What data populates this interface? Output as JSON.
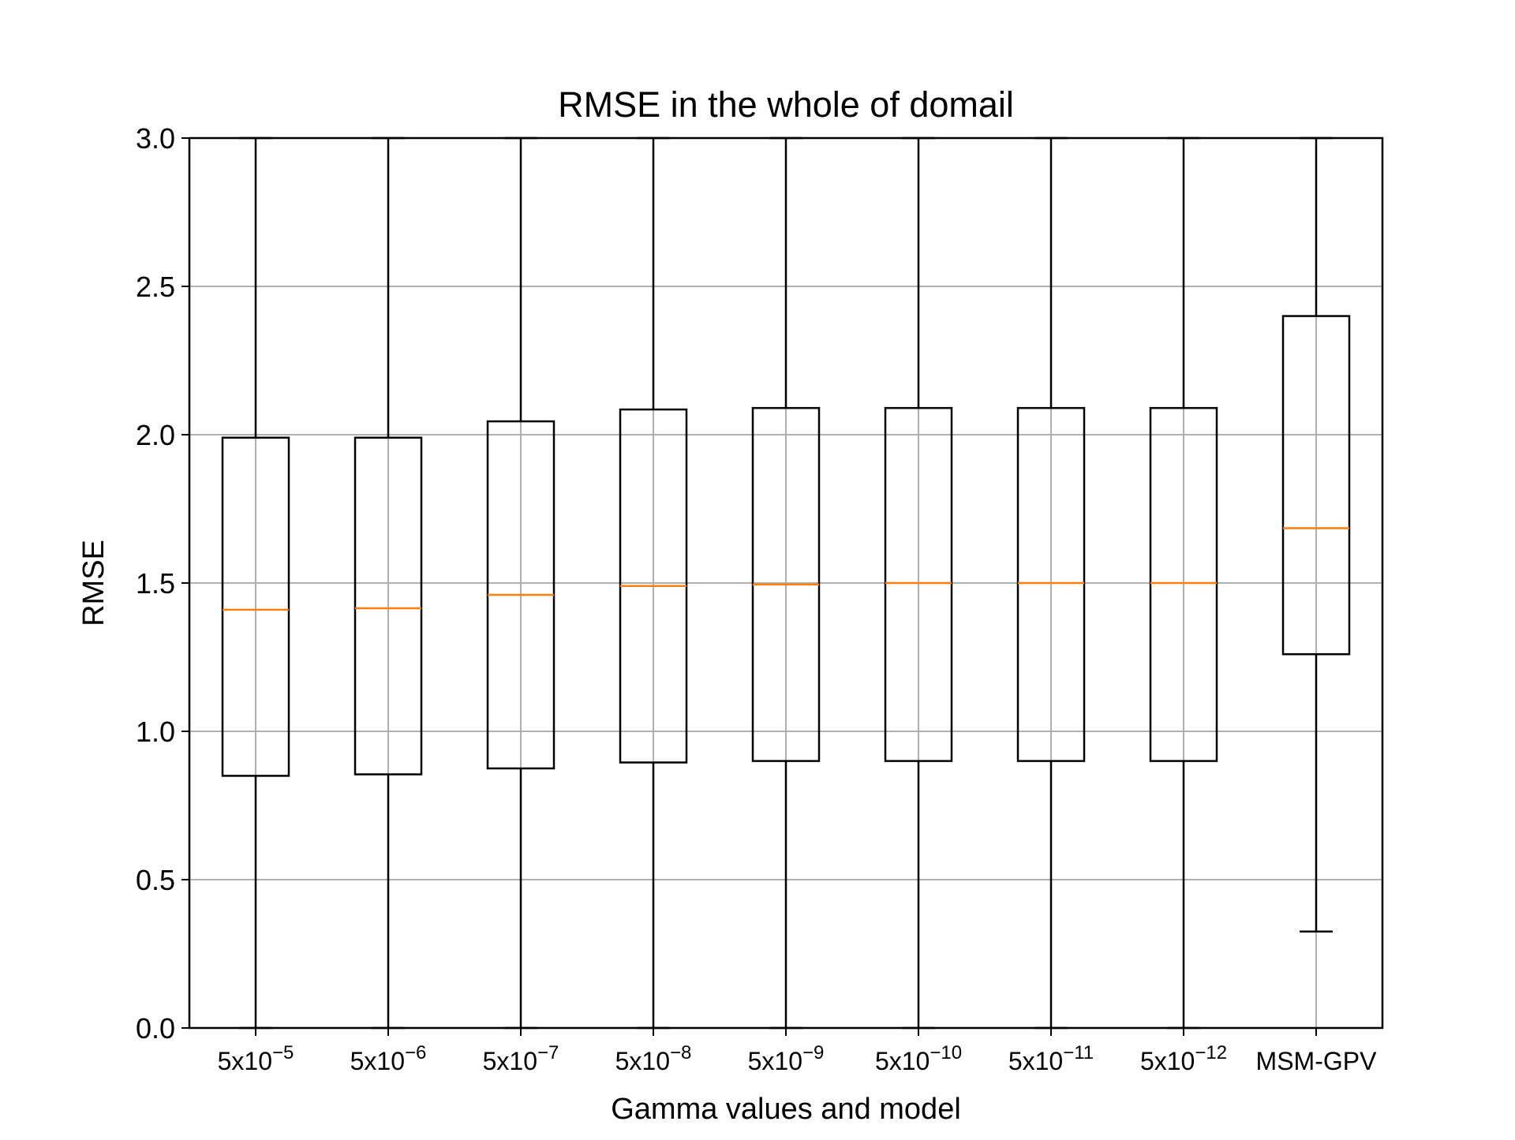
{
  "chart_data": {
    "type": "box",
    "title": "RMSE in the whole of domail",
    "xlabel": "Gamma values and model",
    "ylabel": "RMSE",
    "ylim": [
      0,
      3.0
    ],
    "yticks": [
      0.0,
      0.5,
      1.0,
      1.5,
      2.0,
      2.5,
      3.0
    ],
    "ytick_labels": [
      "0.0",
      "0.5",
      "1.0",
      "1.5",
      "2.0",
      "2.5",
      "3.0"
    ],
    "grid": true,
    "categories": [
      {
        "base": "5x10",
        "exp": "−5"
      },
      {
        "base": "5x10",
        "exp": "−6"
      },
      {
        "base": "5x10",
        "exp": "−7"
      },
      {
        "base": "5x10",
        "exp": "−8"
      },
      {
        "base": "5x10",
        "exp": "−9"
      },
      {
        "base": "5x10",
        "exp": "−10"
      },
      {
        "base": "5x10",
        "exp": "−11"
      },
      {
        "base": "5x10",
        "exp": "−12"
      },
      {
        "base": "MSM-GPV",
        "exp": ""
      }
    ],
    "boxes": [
      {
        "whisker_low": 0.0,
        "q1": 0.85,
        "median": 1.41,
        "q3": 1.99,
        "whisker_high": 3.0
      },
      {
        "whisker_low": 0.0,
        "q1": 0.855,
        "median": 1.415,
        "q3": 1.99,
        "whisker_high": 3.0
      },
      {
        "whisker_low": 0.0,
        "q1": 0.875,
        "median": 1.46,
        "q3": 2.045,
        "whisker_high": 3.0
      },
      {
        "whisker_low": 0.0,
        "q1": 0.895,
        "median": 1.49,
        "q3": 2.085,
        "whisker_high": 3.0
      },
      {
        "whisker_low": 0.0,
        "q1": 0.9,
        "median": 1.495,
        "q3": 2.09,
        "whisker_high": 3.0
      },
      {
        "whisker_low": 0.0,
        "q1": 0.9,
        "median": 1.5,
        "q3": 2.09,
        "whisker_high": 3.0
      },
      {
        "whisker_low": 0.0,
        "q1": 0.9,
        "median": 1.5,
        "q3": 2.09,
        "whisker_high": 3.0
      },
      {
        "whisker_low": 0.0,
        "q1": 0.9,
        "median": 1.5,
        "q3": 2.09,
        "whisker_high": 3.0
      },
      {
        "whisker_low": 0.325,
        "q1": 1.26,
        "median": 1.685,
        "q3": 2.4,
        "whisker_high": 3.0
      }
    ],
    "colors": {
      "box": "#000000",
      "median": "#ff7f0e",
      "grid": "#b0b0b0"
    }
  }
}
